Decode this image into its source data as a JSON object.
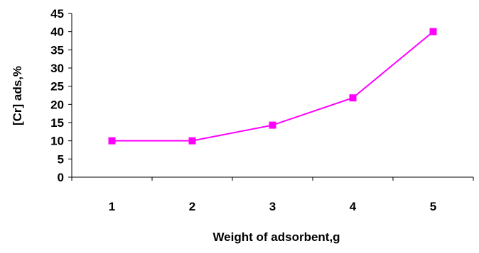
{
  "chart_data": {
    "type": "line",
    "title": "",
    "xlabel": "Weight of adsorbent,g",
    "ylabel": "[Cr] ads,%",
    "categories": [
      "1",
      "2",
      "3",
      "4",
      "5"
    ],
    "y_ticks": [
      "0",
      "5",
      "10",
      "15",
      "20",
      "25",
      "30",
      "35",
      "40",
      "45"
    ],
    "ylim": [
      0,
      45
    ],
    "grid": false,
    "legend": "none",
    "series": [
      {
        "values": [
          10,
          10,
          14.3,
          21.8,
          40
        ],
        "color": "#ff00ff",
        "marker": "square"
      }
    ]
  }
}
